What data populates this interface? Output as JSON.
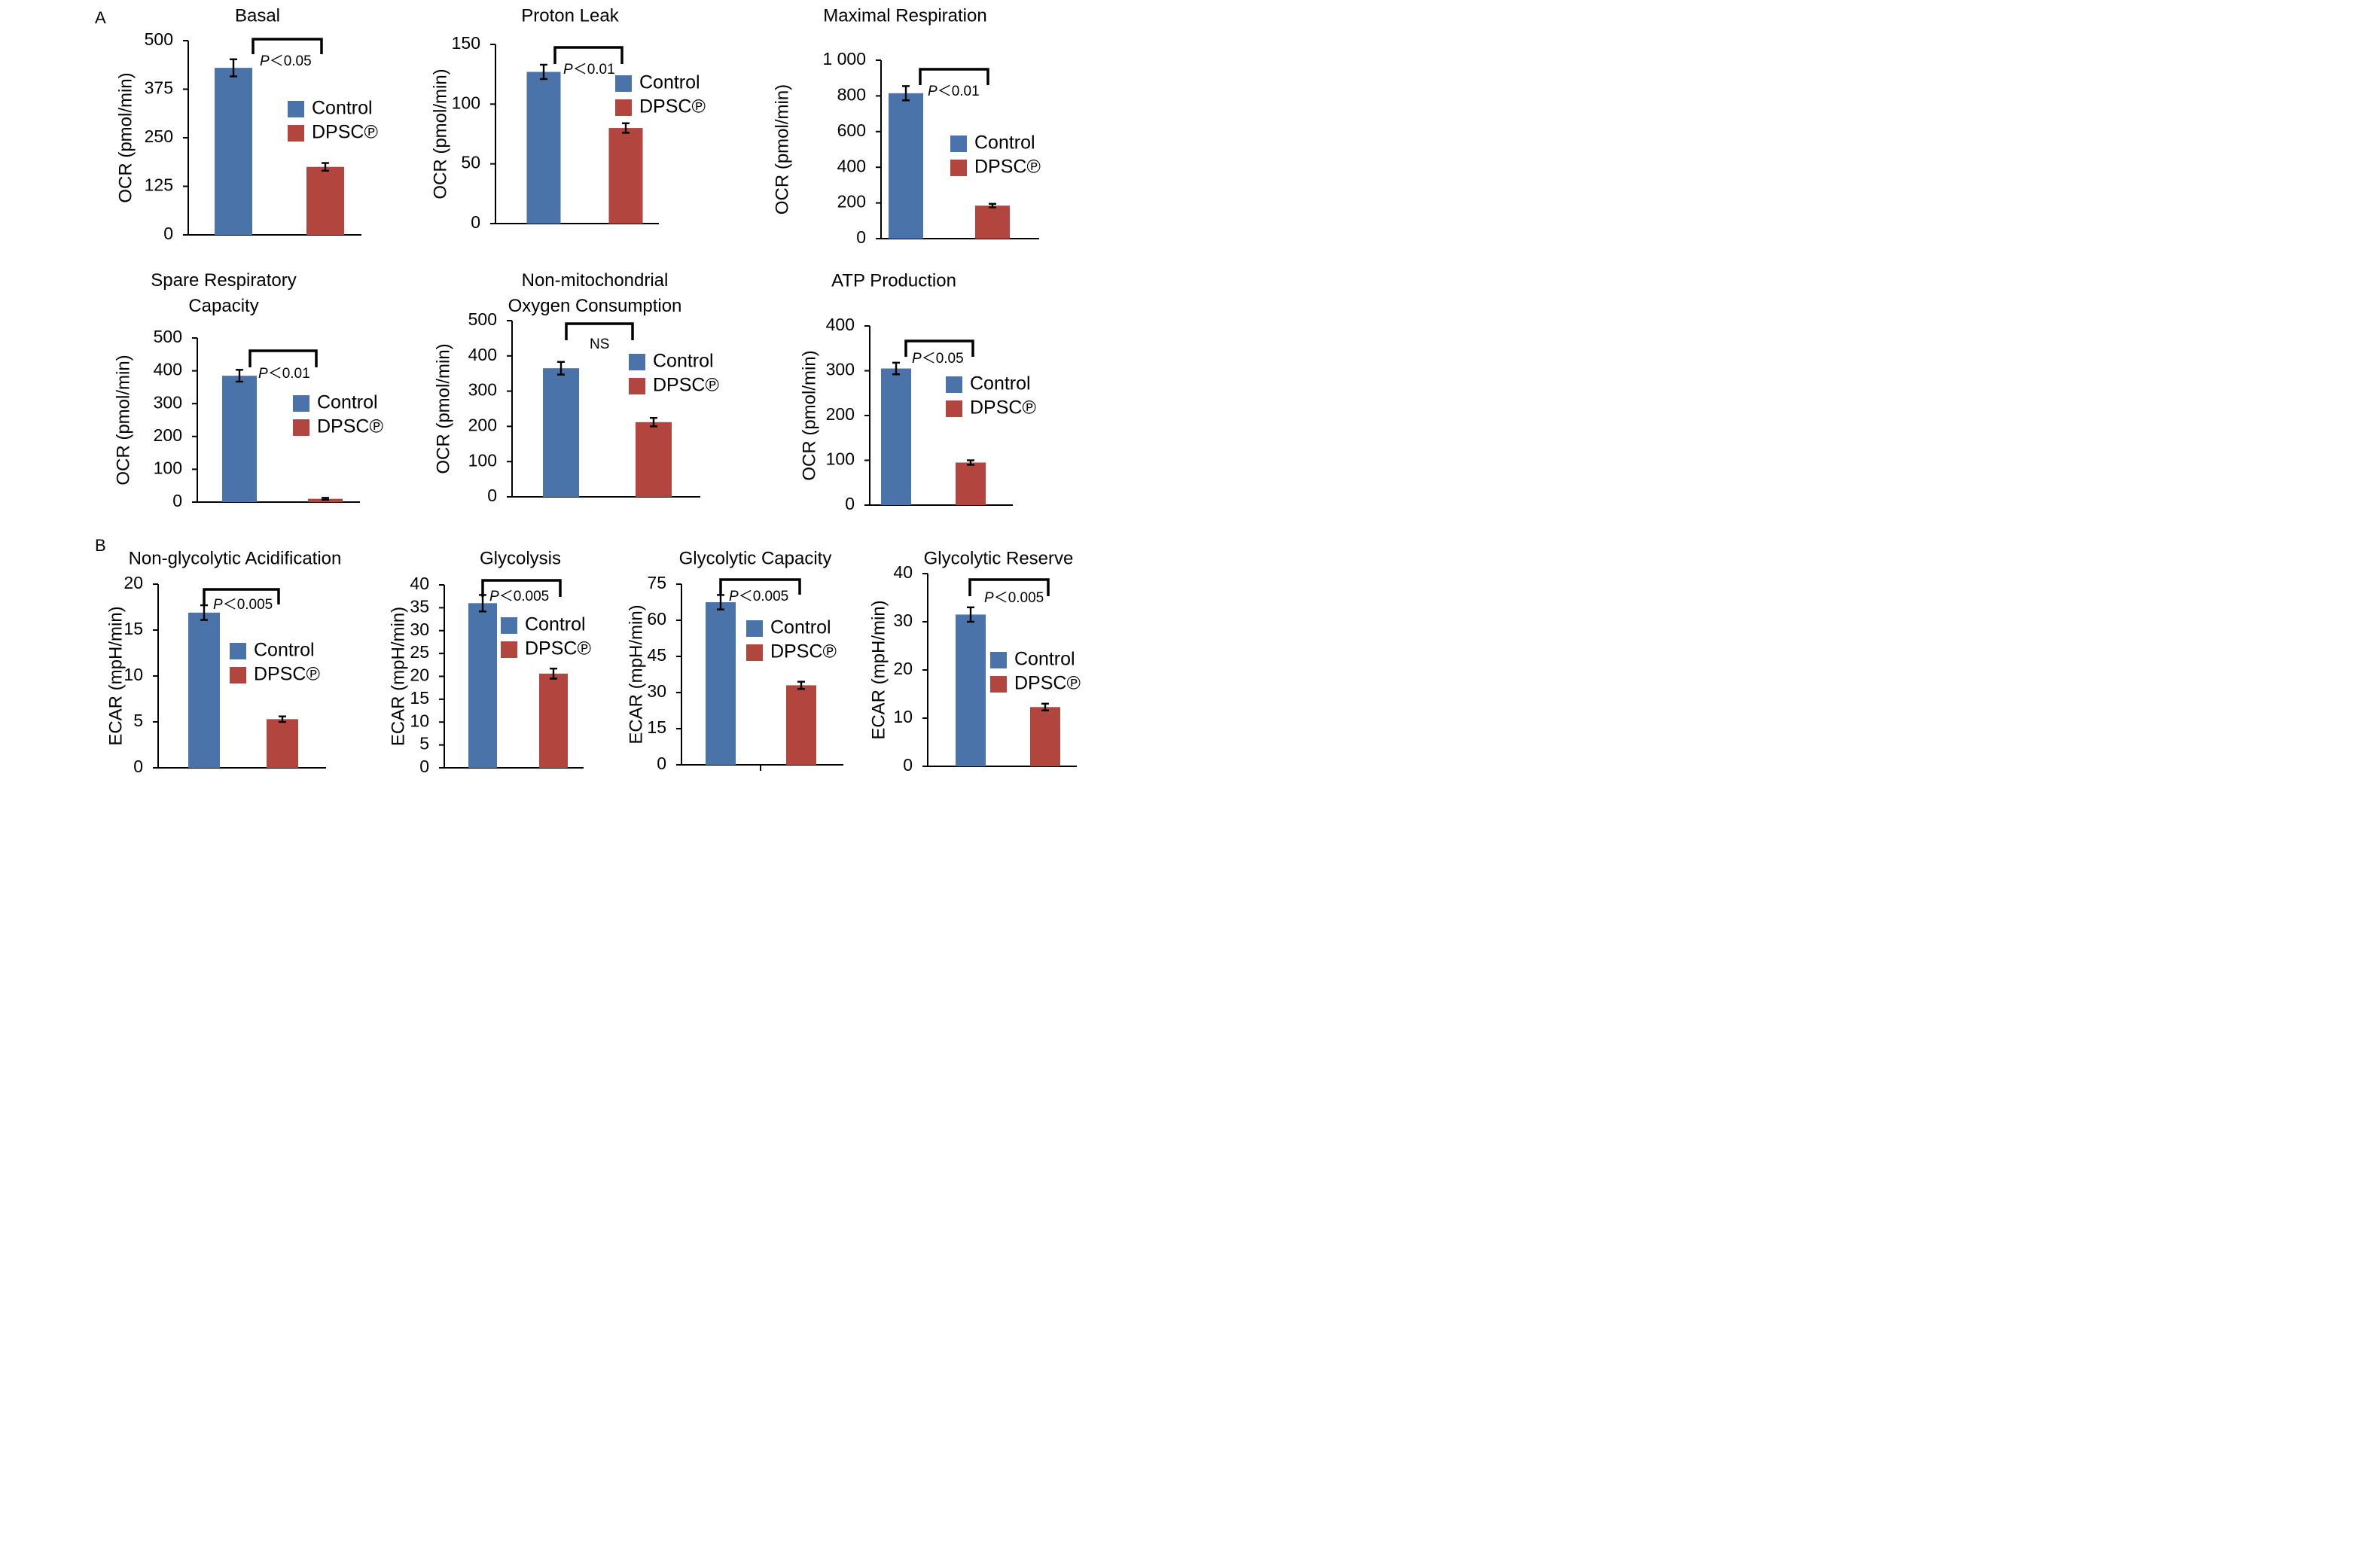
{
  "figure": {
    "panel_labels": [
      "A",
      "B"
    ],
    "colors": {
      "control": "#4a74a9",
      "dpsc": "#b3453f"
    }
  },
  "chart_data": [
    {
      "type": "bar",
      "title": "Basal",
      "ylabel": "OCR (pmol/min)",
      "ylim": [
        0,
        500
      ],
      "yticks": [
        "0",
        "125",
        "250",
        "375",
        "500"
      ],
      "series": [
        {
          "name": "Control",
          "value": 430,
          "error": 22
        },
        {
          "name": "DPSC℗",
          "value": 175,
          "error": 10
        }
      ],
      "significance": {
        "label": "P＜0.05",
        "p_italic": "P",
        "rest": "＜0.05"
      }
    },
    {
      "type": "bar",
      "title": "Proton Leak",
      "ylabel": "OCR (pmol/min)",
      "ylim": [
        0,
        150
      ],
      "yticks": [
        "0",
        "50",
        "100",
        "150"
      ],
      "series": [
        {
          "name": "Control",
          "value": 127,
          "error": 6
        },
        {
          "name": "DPSC℗",
          "value": 80,
          "error": 4
        }
      ],
      "significance": {
        "label": "P＜0.01",
        "p_italic": "P",
        "rest": "＜0.01"
      }
    },
    {
      "type": "bar",
      "title": "Maximal Respiration",
      "ylabel": "OCR (pmol/min)",
      "ylim": [
        0,
        1000
      ],
      "yticks": [
        "0",
        "200",
        "400",
        "600",
        "800",
        "1 000"
      ],
      "series": [
        {
          "name": "Control",
          "value": 815,
          "error": 40
        },
        {
          "name": "DPSC℗",
          "value": 185,
          "error": 10
        }
      ],
      "significance": {
        "label": "P＜0.01",
        "p_italic": "P",
        "rest": "＜0.01"
      }
    },
    {
      "type": "bar",
      "title": "Spare Respiratory Capacity",
      "ylabel": "OCR (pmol/min)",
      "ylim": [
        0,
        500
      ],
      "yticks": [
        "0",
        "100",
        "200",
        "300",
        "400",
        "500"
      ],
      "series": [
        {
          "name": "Control",
          "value": 385,
          "error": 18
        },
        {
          "name": "DPSC℗",
          "value": 10,
          "error": 3
        }
      ],
      "significance": {
        "label": "P＜0.01",
        "p_italic": "P",
        "rest": "＜0.01"
      }
    },
    {
      "type": "bar",
      "title": "Non-mitochondrial Oxygen Consumption",
      "ylabel": "OCR (pmol/min)",
      "ylim": [
        0,
        500
      ],
      "yticks": [
        "0",
        "100",
        "200",
        "300",
        "400",
        "500"
      ],
      "series": [
        {
          "name": "Control",
          "value": 365,
          "error": 18
        },
        {
          "name": "DPSC℗",
          "value": 212,
          "error": 12
        }
      ],
      "significance": {
        "label": "NS",
        "p_italic": "",
        "rest": "NS"
      }
    },
    {
      "type": "bar",
      "title": "ATP Production",
      "ylabel": "OCR (pmol/min)",
      "ylim": [
        0,
        400
      ],
      "yticks": [
        "0",
        "100",
        "200",
        "300",
        "400"
      ],
      "series": [
        {
          "name": "Control",
          "value": 305,
          "error": 13
        },
        {
          "name": "DPSC℗",
          "value": 95,
          "error": 5
        }
      ],
      "significance": {
        "label": "P＜0.05",
        "p_italic": "P",
        "rest": "＜0.05"
      }
    },
    {
      "type": "bar",
      "title": "Non-glycolytic Acidification",
      "ylabel": "ECAR (mpH/min)",
      "ylim": [
        0,
        20
      ],
      "yticks": [
        "0",
        "5",
        "10",
        "15",
        "20"
      ],
      "series": [
        {
          "name": "Control",
          "value": 16.9,
          "error": 0.8
        },
        {
          "name": "DPSC℗",
          "value": 5.3,
          "error": 0.3
        }
      ],
      "significance": {
        "label": "P＜0.005",
        "p_italic": "P",
        "rest": "＜0.005"
      }
    },
    {
      "type": "bar",
      "title": "Glycolysis",
      "ylabel": "ECAR (mpH/min)",
      "ylim": [
        0,
        40
      ],
      "yticks": [
        "0",
        "5",
        "10",
        "15",
        "20",
        "25",
        "30",
        "35",
        "40"
      ],
      "series": [
        {
          "name": "Control",
          "value": 36,
          "error": 1.8
        },
        {
          "name": "DPSC℗",
          "value": 20.6,
          "error": 1.1
        }
      ],
      "significance": {
        "label": "P＜0.005",
        "p_italic": "P",
        "rest": "＜0.005"
      }
    },
    {
      "type": "bar",
      "title": "Glycolytic Capacity",
      "ylabel": "ECAR (mpH/min)",
      "ylim": [
        0,
        75
      ],
      "yticks": [
        "0",
        "15",
        "30",
        "45",
        "60",
        "75"
      ],
      "series": [
        {
          "name": "Control",
          "value": 67.5,
          "error": 3
        },
        {
          "name": "DPSC℗",
          "value": 33,
          "error": 1.5
        }
      ],
      "significance": {
        "label": "P＜0.005",
        "p_italic": "P",
        "rest": "＜0.005"
      }
    },
    {
      "type": "bar",
      "title": "Glycolytic Reserve",
      "ylabel": "ECAR (mpH/min)",
      "ylim": [
        0,
        40
      ],
      "yticks": [
        "0",
        "10",
        "20",
        "30",
        "40"
      ],
      "series": [
        {
          "name": "Control",
          "value": 31.5,
          "error": 1.5
        },
        {
          "name": "DPSC℗",
          "value": 12.3,
          "error": 0.7
        }
      ],
      "significance": {
        "label": "P＜0.005",
        "p_italic": "P",
        "rest": "＜0.005"
      }
    }
  ]
}
